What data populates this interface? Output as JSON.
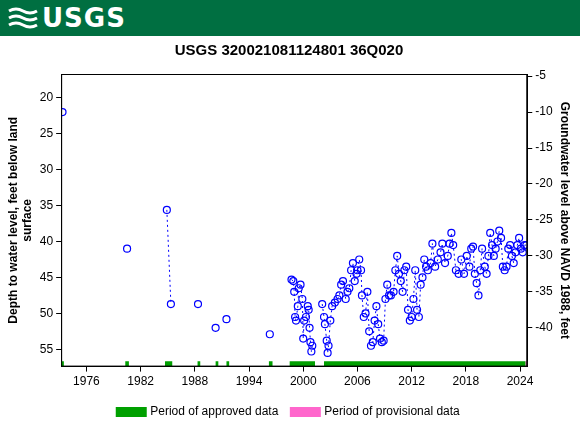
{
  "header": {
    "logo": "USGS"
  },
  "chart_data": {
    "type": "scatter",
    "title": "USGS 320021081124801 36Q020",
    "x_label": "",
    "y_label": [
      "Depth to water level, feet below land",
      "surface"
    ],
    "y2_label": "Groundwater level above NAVD 1988, feet",
    "xlim": [
      1973.2,
      2024.8
    ],
    "xticks": [
      1976,
      1982,
      1988,
      1994,
      2000,
      2006,
      2012,
      2018,
      2024
    ],
    "ylim": [
      57.4,
      16.7
    ],
    "yticks": [
      20,
      25,
      30,
      35,
      40,
      45,
      50,
      55
    ],
    "y2lim": [
      -45.4,
      -4.7
    ],
    "y2ticks": [
      -40,
      -35,
      -30,
      -25,
      -20,
      -15,
      -10,
      -5
    ],
    "grid": false,
    "legend": "bottom",
    "series": [
      {
        "color": "#0000ff",
        "marker": "circle-open",
        "line_style": "dotted",
        "x": [
          1973.35,
          1973.35,
          1980.5,
          1980.5,
          1984.9,
          1985.35,
          1985.35,
          1988.35,
          1988.35,
          1990.3,
          1990.3,
          1991.5,
          1991.5,
          1996.3,
          1996.3,
          1998.7,
          1998.9,
          1999.0,
          1999.1,
          1999.2,
          1999.4,
          1999.5,
          1999.7,
          1999.9,
          2000.0,
          2000.1,
          2000.3,
          2000.5,
          2000.6,
          2000.7,
          2000.8,
          2000.9,
          2001.0,
          2001.0,
          2002.1,
          2002.3,
          2002.4,
          2002.6,
          2002.7,
          2002.8,
          2003.0,
          2003.2,
          2003.5,
          2003.8,
          2004.0,
          2004.2,
          2004.4,
          2004.7,
          2004.9,
          2005.1,
          2005.3,
          2005.5,
          2005.7,
          2005.9,
          2006.0,
          2006.2,
          2006.4,
          2006.5,
          2006.7,
          2006.9,
          2007.1,
          2007.3,
          2007.5,
          2007.7,
          2007.9,
          2008.1,
          2008.3,
          2008.5,
          2008.7,
          2008.9,
          2009.1,
          2009.3,
          2009.5,
          2009.7,
          2010.0,
          2010.2,
          2010.4,
          2010.6,
          2010.8,
          2011.0,
          2011.2,
          2011.4,
          2011.6,
          2011.8,
          2012.0,
          2012.2,
          2012.4,
          2012.6,
          2012.8,
          2013.0,
          2013.2,
          2013.4,
          2013.6,
          2013.8,
          2014.1,
          2014.3,
          2014.6,
          2014.9,
          2015.2,
          2015.4,
          2015.7,
          2016.0,
          2016.2,
          2016.4,
          2016.6,
          2016.9,
          2017.2,
          2017.5,
          2017.8,
          2018.1,
          2018.4,
          2018.6,
          2018.8,
          2019.0,
          2019.2,
          2019.4,
          2019.6,
          2019.8,
          2020.1,
          2020.3,
          2020.5,
          2020.7,
          2020.9,
          2021.1,
          2021.3,
          2021.5,
          2021.7,
          2021.9,
          2022.1,
          2022.3,
          2022.5,
          2022.7,
          2022.9,
          2023.1,
          2023.3,
          2023.5,
          2023.7,
          2023.9,
          2024.1,
          2024.3,
          2024.5,
          2024.7
        ],
        "values": [
          22.0,
          null,
          41.0,
          null,
          35.6,
          48.7,
          null,
          48.7,
          null,
          52.0,
          null,
          50.8,
          null,
          52.9,
          null,
          45.3,
          45.5,
          47.0,
          50.5,
          51.0,
          49.0,
          46.5,
          46.0,
          48.0,
          53.5,
          51.0,
          50.5,
          49.0,
          49.5,
          52.0,
          54.0,
          55.3,
          54.5,
          null,
          48.7,
          50.5,
          51.5,
          53.8,
          55.5,
          54.5,
          51.0,
          49.0,
          48.5,
          48.0,
          47.5,
          46.0,
          45.5,
          48.0,
          47.0,
          46.5,
          44.0,
          43.0,
          45.5,
          44.5,
          44.0,
          42.5,
          44.0,
          47.5,
          50.5,
          50.0,
          47.0,
          52.5,
          54.5,
          54.0,
          51.0,
          49.0,
          51.5,
          53.5,
          54.0,
          53.8,
          48.0,
          46.0,
          47.5,
          47.5,
          47.0,
          44.0,
          42.0,
          44.5,
          45.5,
          47.0,
          44.0,
          43.5,
          49.5,
          51.0,
          50.5,
          48.0,
          44.0,
          49.5,
          50.5,
          46.0,
          45.0,
          42.5,
          43.5,
          44.0,
          43.0,
          40.3,
          43.5,
          42.5,
          41.5,
          40.3,
          43.0,
          42.0,
          40.3,
          38.8,
          40.5,
          44.0,
          44.5,
          42.5,
          44.5,
          42.0,
          43.5,
          41.0,
          40.7,
          44.5,
          45.8,
          47.5,
          44.0,
          41.0,
          43.5,
          44.5,
          42.0,
          38.8,
          40.5,
          42.0,
          41.0,
          40.0,
          38.5,
          39.5,
          43.5,
          44.0,
          43.5,
          41.0,
          40.5,
          42.0,
          43.0,
          41.5,
          40.5,
          39.5,
          41.0,
          41.5,
          40.5,
          40.5
        ]
      },
      {
        "name": "Period of approved data",
        "color": "#00a000",
        "line_style": "solid",
        "x": [
          1973.2,
          1973.5,
          1973.5,
          1980.3,
          1980.7,
          1980.7,
          1984.7,
          1985.5,
          1985.5,
          1988.3,
          1988.6,
          1988.6,
          1990.3,
          1990.6,
          1990.6,
          1991.5,
          1991.8,
          1991.8,
          1996.2,
          1996.6,
          1996.6,
          1998.5,
          2001.3,
          2001.3,
          2002.3,
          2024.6
        ],
        "values": [
          57.0,
          57.0,
          null,
          57.0,
          57.0,
          null,
          57.0,
          57.0,
          null,
          57.0,
          57.0,
          null,
          57.0,
          57.0,
          null,
          57.0,
          57.0,
          null,
          57.0,
          57.0,
          null,
          57.0,
          57.0,
          null,
          57.0,
          57.0
        ]
      },
      {
        "name": "Period of provisional data",
        "color": "#ff66cc",
        "line_style": "solid",
        "x": [
          2024.6,
          2024.8
        ],
        "values": [
          57.0,
          57.0
        ]
      }
    ]
  }
}
